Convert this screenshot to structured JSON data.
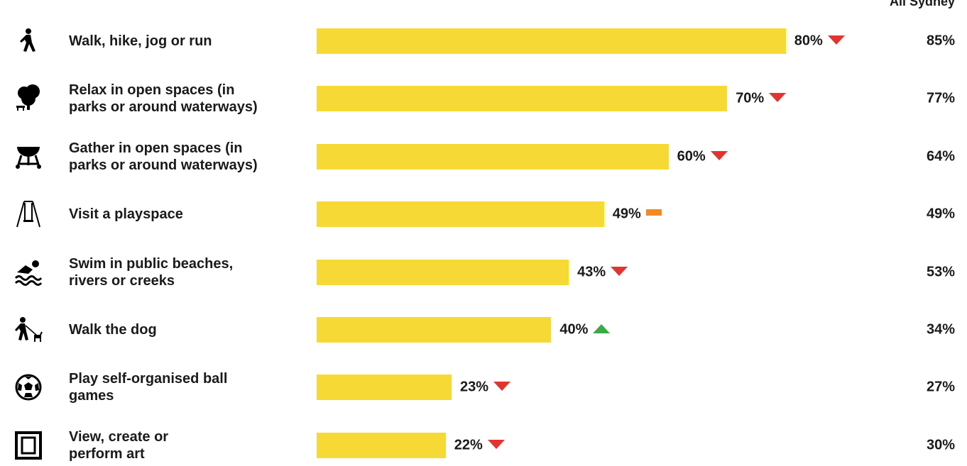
{
  "chart_data": {
    "type": "bar",
    "categories": [
      "Walk, hike, jog or run",
      "Relax in open spaces (in\nparks or around waterways)",
      "Gather in open spaces (in\nparks or around waterways)",
      "Visit a playspace",
      "Swim in public beaches,\nrivers or creeks",
      "Walk the dog",
      "Play self-organised ball\ngames",
      "View, create or\nperform art"
    ],
    "values": [
      80,
      70,
      60,
      49,
      43,
      40,
      23,
      22
    ],
    "value_labels": [
      "80%",
      "70%",
      "60%",
      "49%",
      "43%",
      "40%",
      "23%",
      "22%"
    ],
    "color": "#f6d935",
    "trend": [
      "down",
      "down",
      "down",
      "flat",
      "down",
      "up",
      "down",
      "down"
    ],
    "trend_colors": {
      "down": "#e3342f",
      "up": "#3aaa49",
      "flat": "#f08a24"
    },
    "comparison": {
      "name": "All Sydney",
      "values": [
        85,
        77,
        64,
        49,
        53,
        34,
        27,
        30
      ],
      "value_labels": [
        "85%",
        "77%",
        "64%",
        "49%",
        "53%",
        "34%",
        "27%",
        "30%"
      ]
    }
  }
}
